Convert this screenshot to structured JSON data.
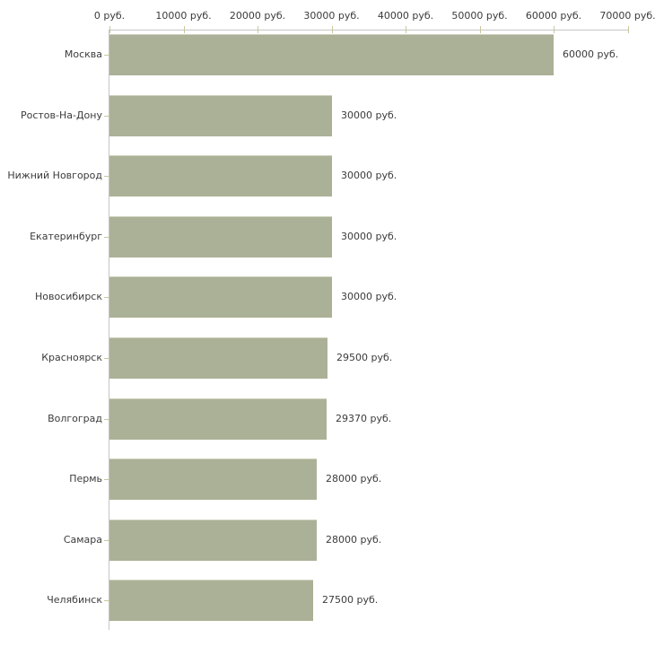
{
  "chart_data": {
    "type": "bar",
    "orientation": "horizontal",
    "title": "",
    "xlabel": "",
    "ylabel": "",
    "categories": [
      "Москва",
      "Ростов-На-Дону",
      "Нижний Новгород",
      "Екатеринбург",
      "Новосибирск",
      "Красноярск",
      "Волгоград",
      "Пермь",
      "Самара",
      "Челябинск"
    ],
    "values": [
      60000,
      30000,
      30000,
      30000,
      30000,
      29500,
      29370,
      28000,
      28000,
      27500
    ],
    "value_labels": [
      "60000 руб.",
      "30000 руб.",
      "30000 руб.",
      "30000 руб.",
      "30000 руб.",
      "29500 руб.",
      "29370 руб.",
      "28000 руб.",
      "28000 руб.",
      "27500 руб."
    ],
    "x_ticks": [
      0,
      10000,
      20000,
      30000,
      40000,
      50000,
      60000,
      70000
    ],
    "x_tick_labels": [
      "0 руб.",
      "10000 руб.",
      "20000 руб.",
      "30000 руб.",
      "40000 руб.",
      "50000 руб.",
      "60000 руб.",
      "70000 руб."
    ],
    "xlim": [
      0,
      70000
    ],
    "grid": false,
    "legend": false,
    "colors": {
      "bar": "#abb196",
      "bar_top_highlight": "#cdd1bd",
      "axis_line": "#c6c6c6",
      "tick_mark": "#c9c79e",
      "text": "#3b3b3b",
      "background": "#ffffff"
    }
  }
}
